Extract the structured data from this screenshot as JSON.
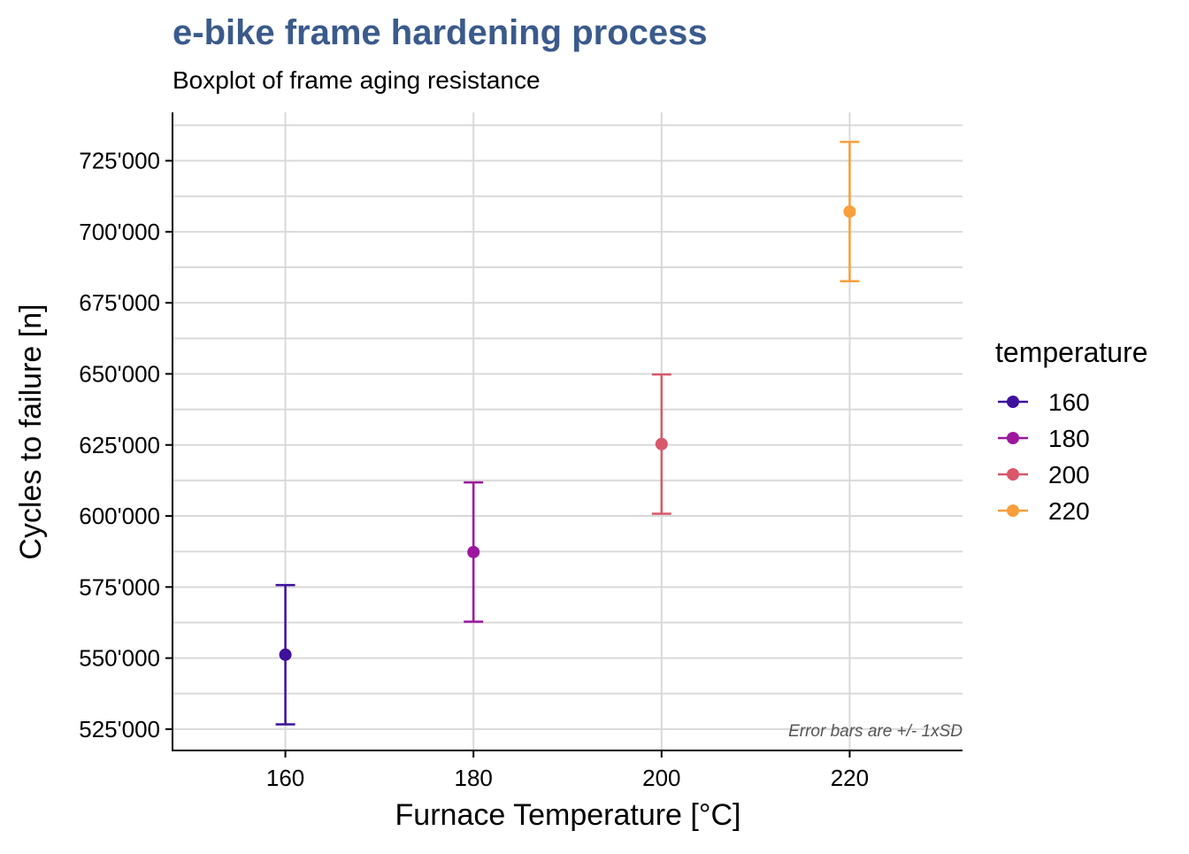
{
  "chart_data": {
    "type": "scatter",
    "title": "e-bike frame hardening process",
    "subtitle": "Boxplot of frame aging resistance",
    "xlabel": "Furnace Temperature [°C]",
    "ylabel": "Cycles to failure [n]",
    "caption": "Error bars are +/- 1xSD",
    "xlim": [
      148,
      232
    ],
    "ylim": [
      517500,
      742000
    ],
    "x_ticks": [
      160,
      180,
      200,
      220
    ],
    "x_tick_labels": [
      "160",
      "180",
      "200",
      "220"
    ],
    "y_ticks": [
      525000,
      550000,
      575000,
      600000,
      625000,
      650000,
      675000,
      700000,
      725000
    ],
    "y_tick_labels": [
      "525'000",
      "550'000",
      "575'000",
      "600'000",
      "625'000",
      "650'000",
      "675'000",
      "700'000",
      "725'000"
    ],
    "y_minor_gridlines": [
      537500,
      562500,
      587500,
      612500,
      637500,
      662500,
      687500,
      712500,
      737500
    ],
    "grid": true,
    "legend_title": "temperature",
    "legend_position": "right",
    "series": [
      {
        "name": "160",
        "color": "#3f0f9e",
        "x": 160,
        "y": 551200,
        "sd": 24500
      },
      {
        "name": "180",
        "color": "#9c179e",
        "x": 180,
        "y": 587300,
        "sd": 24500
      },
      {
        "name": "200",
        "color": "#d8576b",
        "x": 200,
        "y": 625300,
        "sd": 24500
      },
      {
        "name": "220",
        "color": "#f89e3b",
        "x": 220,
        "y": 707100,
        "sd": 24500
      }
    ],
    "colors": {
      "title": "#3a5a8c",
      "grid": "#d9d9d9",
      "axis": "#000000",
      "caption": "#555555"
    }
  }
}
